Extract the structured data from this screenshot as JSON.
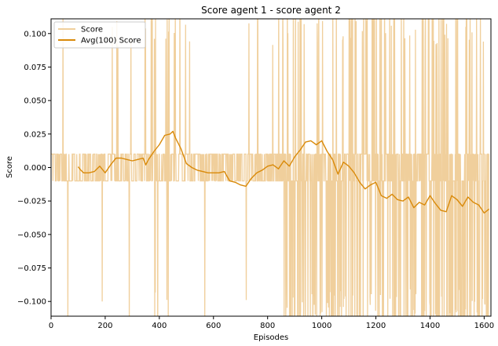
{
  "chart_data": {
    "type": "line",
    "title": "Score agent 1 - score agent 2",
    "xlabel": "Episodes",
    "ylabel": "Score",
    "xlim": [
      0,
      1625
    ],
    "ylim": [
      -0.111,
      0.111
    ],
    "x_ticks": [
      0,
      200,
      400,
      600,
      800,
      1000,
      1200,
      1400,
      1600
    ],
    "x_tick_labels": [
      "0",
      "200",
      "400",
      "600",
      "800",
      "1000",
      "1200",
      "1400",
      "1600"
    ],
    "y_ticks": [
      -0.1,
      -0.075,
      -0.05,
      -0.025,
      0.0,
      0.025,
      0.05,
      0.075,
      0.1
    ],
    "y_tick_labels": [
      "−0.100",
      "−0.075",
      "−0.050",
      "−0.025",
      "0.000",
      "0.025",
      "0.050",
      "0.075",
      "0.100"
    ],
    "grid": false,
    "legend_position": "top-left",
    "series": [
      {
        "name": "Score",
        "color": "#f0cf9c",
        "style": "raw episode scores alternating mostly between -0.01 and 0.01 with frequent spikes beyond axis limits",
        "x_range": [
          1,
          1618
        ]
      },
      {
        "name": "Avg(100) Score",
        "color": "#d98a0a",
        "x": [
          100,
          110,
          120,
          140,
          160,
          180,
          200,
          220,
          240,
          260,
          280,
          300,
          320,
          340,
          350,
          360,
          380,
          400,
          420,
          440,
          450,
          460,
          480,
          500,
          520,
          540,
          560,
          580,
          600,
          620,
          640,
          660,
          680,
          700,
          720,
          740,
          760,
          780,
          800,
          820,
          840,
          860,
          880,
          900,
          920,
          940,
          960,
          980,
          1000,
          1020,
          1040,
          1060,
          1080,
          1100,
          1120,
          1140,
          1160,
          1180,
          1200,
          1220,
          1240,
          1260,
          1280,
          1300,
          1320,
          1340,
          1360,
          1380,
          1400,
          1420,
          1440,
          1460,
          1480,
          1500,
          1520,
          1540,
          1560,
          1580,
          1600,
          1618
        ],
        "values": [
          0.0005,
          -0.002,
          -0.004,
          -0.004,
          -0.003,
          0.001,
          -0.004,
          0.002,
          0.007,
          0.007,
          0.006,
          0.005,
          0.006,
          0.007,
          0.002,
          0.006,
          0.012,
          0.017,
          0.024,
          0.025,
          0.027,
          0.022,
          0.014,
          0.003,
          0.0,
          -0.002,
          -0.003,
          -0.004,
          -0.004,
          -0.004,
          -0.003,
          -0.01,
          -0.011,
          -0.013,
          -0.014,
          -0.008,
          -0.004,
          -0.002,
          0.001,
          0.002,
          -0.001,
          0.005,
          0.001,
          0.008,
          0.013,
          0.019,
          0.02,
          0.017,
          0.02,
          0.012,
          0.006,
          -0.005,
          0.004,
          0.001,
          -0.004,
          -0.011,
          -0.016,
          -0.013,
          -0.011,
          -0.021,
          -0.023,
          -0.02,
          -0.024,
          -0.025,
          -0.022,
          -0.03,
          -0.026,
          -0.028,
          -0.021,
          -0.027,
          -0.032,
          -0.033,
          -0.021,
          -0.024,
          -0.029,
          -0.022,
          -0.026,
          -0.028,
          -0.034,
          -0.031
        ]
      }
    ]
  }
}
